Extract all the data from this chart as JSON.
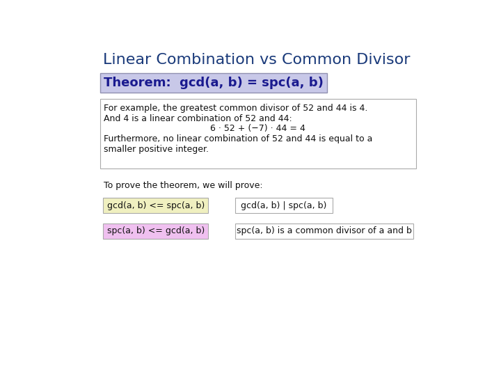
{
  "title": "Linear Combination vs Common Divisor",
  "title_color": "#1a3a7a",
  "bg_color": "#ffffff",
  "theorem_text": "Theorem:  gcd(a, b) = spc(a, b)",
  "theorem_box_color": "#c8c8e8",
  "theorem_border_color": "#9090b0",
  "theorem_text_color": "#1a1a8f",
  "example_lines": [
    "For example, the greatest common divisor of 52 and 44 is 4.",
    "And 4 is a linear combination of 52 and 44:",
    "        6 · 52 + (−7) · 44 = 4",
    "Furthermore, no linear combination of 52 and 44 is equal to a",
    "smaller positive integer."
  ],
  "example_box_color": "#ffffff",
  "example_border_color": "#aaaaaa",
  "example_text_color": "#111111",
  "prove_text": "To prove the theorem, we will prove:",
  "box1_text": "gcd(a, b) <= spc(a, b)",
  "box1_bg": "#f0f0c0",
  "box2_text": "gcd(a, b) | spc(a, b)",
  "box2_bg": "#ffffff",
  "box3_text": "spc(a, b) <= gcd(a, b)",
  "box3_bg": "#f0c0f0",
  "box4_text": "spc(a, b) is a common divisor of a and b",
  "box4_bg": "#ffffff",
  "box_border_color": "#aaaaaa",
  "title_fontsize": 16,
  "theorem_fontsize": 13,
  "body_fontsize": 9,
  "small_fontsize": 9,
  "prove_fontsize": 9
}
